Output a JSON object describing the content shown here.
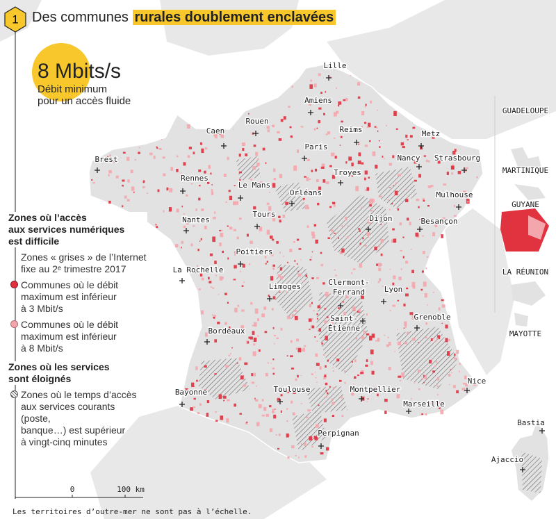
{
  "header": {
    "number": "1",
    "title": "Des communes",
    "title_highlight": "rurales doublement enclavées"
  },
  "callout": {
    "value": "8 Mbits/s",
    "lines": [
      "Débit minimum",
      "pour un accès fluide"
    ]
  },
  "legend": {
    "difficult": {
      "title": [
        "Zones où l’accès",
        "aux services numériques",
        "est difficile"
      ],
      "items": [
        [
          "Zones « grises » de l’Internet",
          "fixe au 2ᵉ trimestre 2017"
        ],
        [
          "Communes où le débit",
          "maximum est inférieur",
          "à 3 Mbit/s"
        ],
        [
          "Communes où le débit",
          "maximum est inférieur",
          "à 8 Mbit/s"
        ]
      ]
    },
    "remote": {
      "title": [
        "Zones où les services",
        "sont éloignés"
      ],
      "items": [
        [
          "Zones où le temps d’accès",
          "aux services courants (poste,",
          "banque…) est supérieur",
          "à vingt-cinq minutes"
        ]
      ]
    }
  },
  "cities": [
    [
      "Lille"
    ],
    [
      "Amiens"
    ],
    [
      "Rouen"
    ],
    [
      "Caen"
    ],
    [
      "Reims"
    ],
    [
      "Metz"
    ],
    [
      "Paris"
    ],
    [
      "Nancy"
    ],
    [
      "Strasbourg"
    ],
    [
      "Brest"
    ],
    [
      "Troyes"
    ],
    [
      "Rennes"
    ],
    [
      "Le Mans"
    ],
    [
      "Orléans"
    ],
    [
      "Mulhouse"
    ],
    [
      "Dijon"
    ],
    [
      "Besançon"
    ],
    [
      "Tours"
    ],
    [
      "Nantes"
    ],
    [
      "Poitiers"
    ],
    [
      "La Rochelle"
    ],
    [
      "Limoges"
    ],
    [
      "Clermont-",
      "Ferrand"
    ],
    [
      "Lyon"
    ],
    [
      "Saint-",
      "Étienne"
    ],
    [
      "Grenoble"
    ],
    [
      "Bordeaux"
    ],
    [
      "Bayonne"
    ],
    [
      "Toulouse"
    ],
    [
      "Montpellier"
    ],
    [
      "Nice"
    ],
    [
      "Marseille"
    ],
    [
      "Perpignan"
    ],
    [
      "Bastia"
    ],
    [
      "Ajaccio"
    ]
  ],
  "overseas": [
    "GUADELOUPE",
    "MARTINIQUE",
    "GUYANE",
    "LA RÉUNION",
    "MAYOTTE"
  ],
  "scale": {
    "zero": "0",
    "distance": "100 km"
  },
  "footnote": "Les territoires d’outre-mer ne sont pas à l’échelle."
}
